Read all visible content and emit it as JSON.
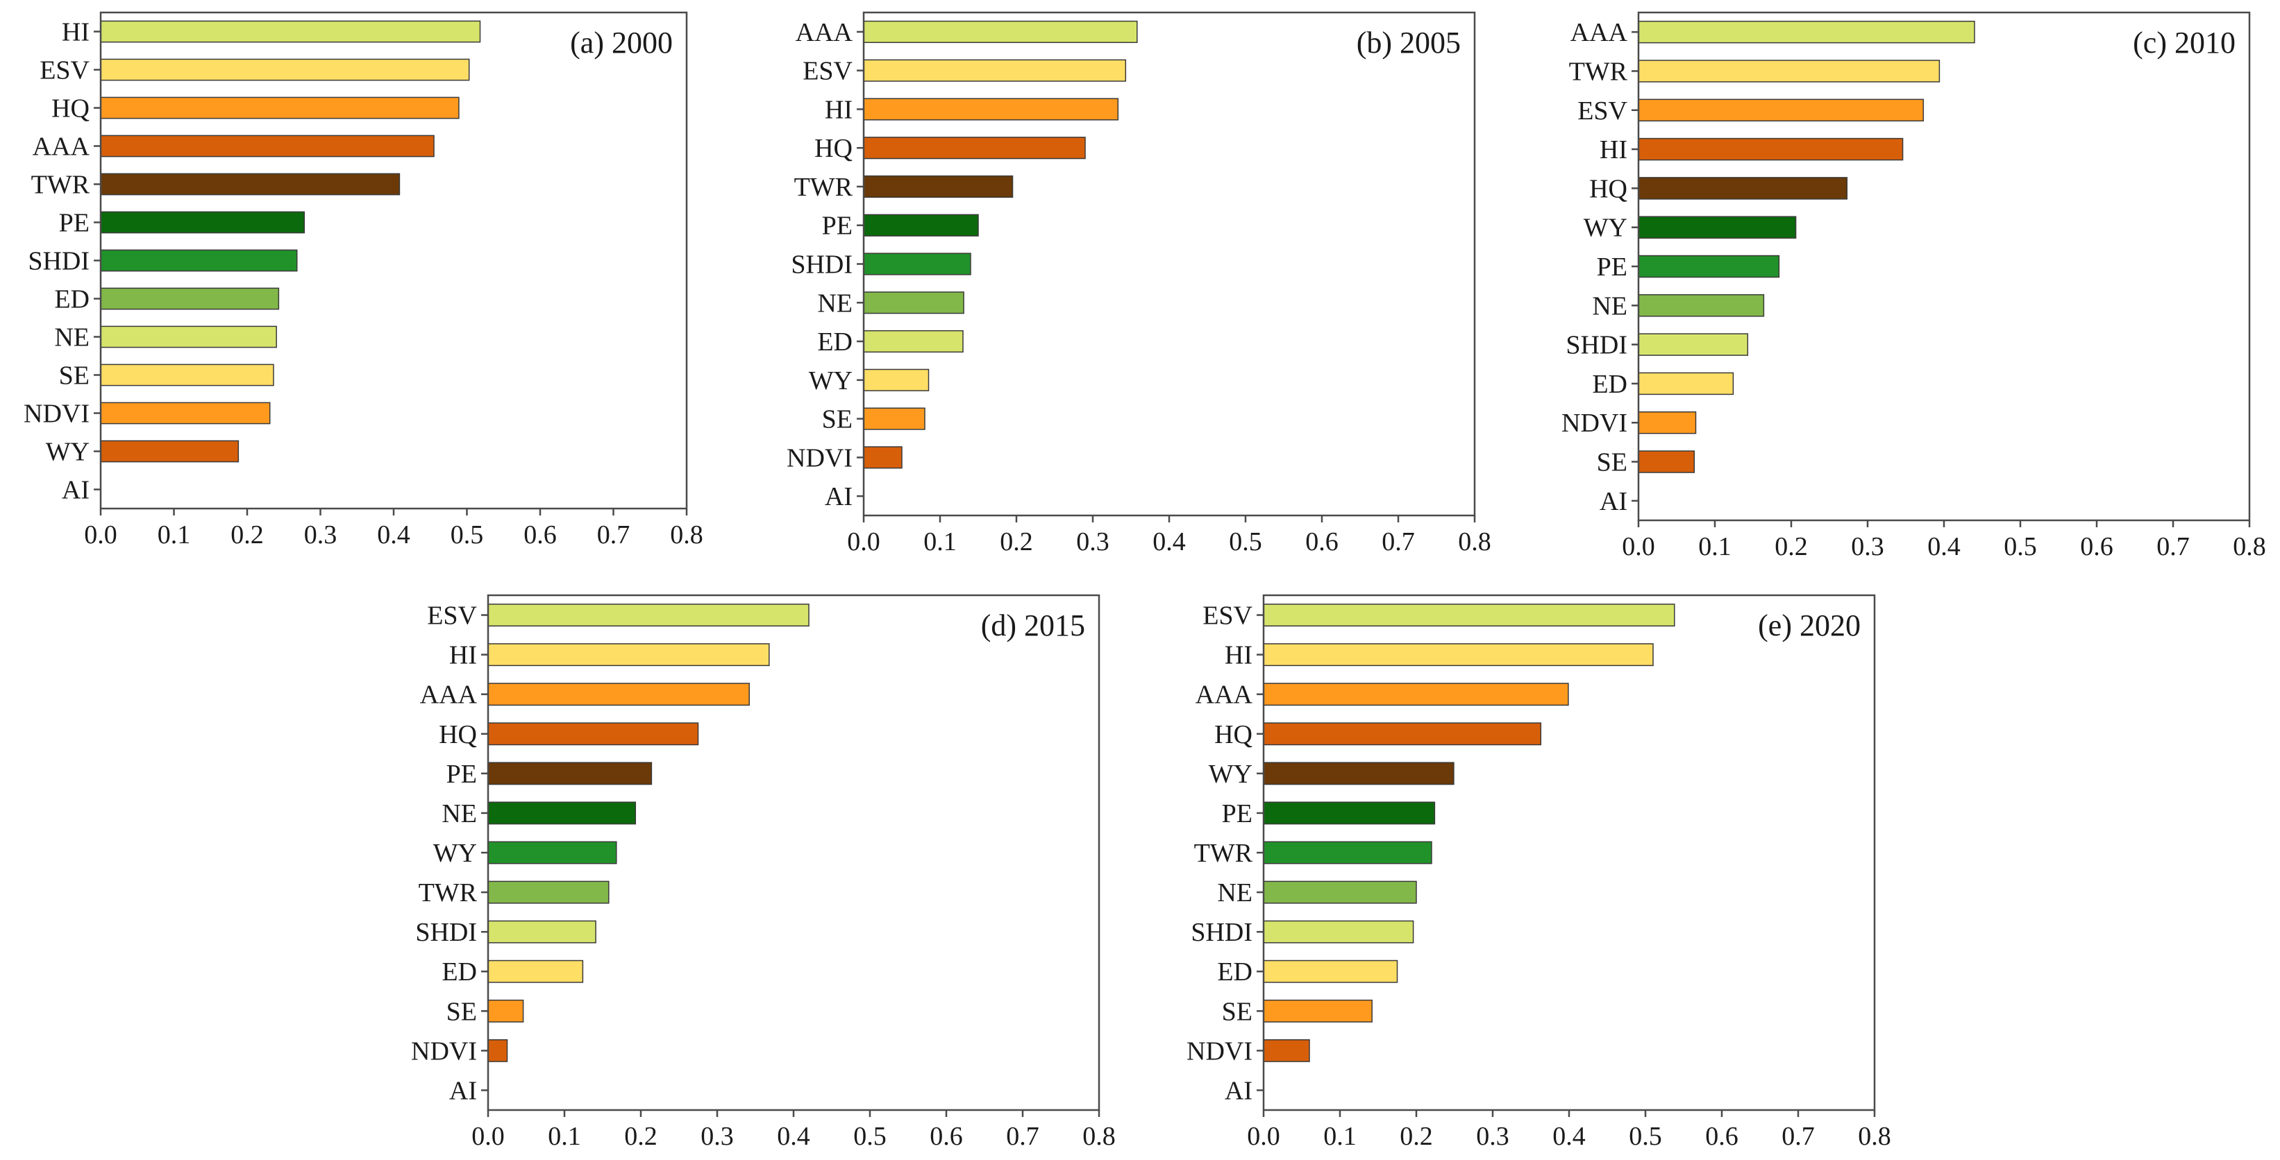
{
  "palette": [
    "#d7e46c",
    "#ffde66",
    "#ff9a1e",
    "#d85f0a",
    "#6b3a08",
    "#0b6a0b",
    "#21922a",
    "#82b849",
    "#d7e46c",
    "#ffde66",
    "#ff9a1e",
    "#d85f0a",
    "#d85f0a"
  ],
  "chart_data": [
    {
      "id": "a",
      "type": "bar",
      "orientation": "horizontal",
      "title": "(a) 2000",
      "categories": [
        "HI",
        "ESV",
        "HQ",
        "AAA",
        "TWR",
        "PE",
        "SHDI",
        "ED",
        "NE",
        "SE",
        "NDVI",
        "WY",
        "AI"
      ],
      "values": [
        0.518,
        0.503,
        0.489,
        0.455,
        0.408,
        0.278,
        0.268,
        0.243,
        0.24,
        0.236,
        0.231,
        0.188,
        0.0
      ],
      "xlim": [
        0,
        0.8
      ],
      "xticks": [
        "0.0",
        "0.1",
        "0.2",
        "0.3",
        "0.4",
        "0.5",
        "0.6",
        "0.7",
        "0.8"
      ]
    },
    {
      "id": "b",
      "type": "bar",
      "orientation": "horizontal",
      "title": "(b) 2005",
      "categories": [
        "AAA",
        "ESV",
        "HI",
        "HQ",
        "TWR",
        "PE",
        "SHDI",
        "NE",
        "ED",
        "WY",
        "SE",
        "NDVI",
        "AI"
      ],
      "values": [
        0.358,
        0.343,
        0.333,
        0.29,
        0.195,
        0.15,
        0.14,
        0.131,
        0.13,
        0.085,
        0.08,
        0.05,
        0.0
      ],
      "xlim": [
        0,
        0.8
      ],
      "xticks": [
        "0.0",
        "0.1",
        "0.2",
        "0.3",
        "0.4",
        "0.5",
        "0.6",
        "0.7",
        "0.8"
      ]
    },
    {
      "id": "c",
      "type": "bar",
      "orientation": "horizontal",
      "title": "(c) 2010",
      "categories": [
        "AAA",
        "TWR",
        "ESV",
        "HI",
        "HQ",
        "WY",
        "PE",
        "NE",
        "SHDI",
        "ED",
        "NDVI",
        "SE",
        "AI"
      ],
      "values": [
        0.44,
        0.394,
        0.373,
        0.346,
        0.273,
        0.206,
        0.184,
        0.164,
        0.143,
        0.124,
        0.075,
        0.073,
        0.0
      ],
      "xlim": [
        0,
        0.8
      ],
      "xticks": [
        "0.0",
        "0.1",
        "0.2",
        "0.3",
        "0.4",
        "0.5",
        "0.6",
        "0.7",
        "0.8"
      ]
    },
    {
      "id": "d",
      "type": "bar",
      "orientation": "horizontal",
      "title": "(d) 2015",
      "categories": [
        "ESV",
        "HI",
        "AAA",
        "HQ",
        "PE",
        "NE",
        "WY",
        "TWR",
        "SHDI",
        "ED",
        "SE",
        "NDVI",
        "AI"
      ],
      "values": [
        0.42,
        0.368,
        0.342,
        0.275,
        0.214,
        0.193,
        0.168,
        0.158,
        0.141,
        0.124,
        0.046,
        0.025,
        0.0
      ],
      "xlim": [
        0,
        0.8
      ],
      "xticks": [
        "0.0",
        "0.1",
        "0.2",
        "0.3",
        "0.4",
        "0.5",
        "0.6",
        "0.7",
        "0.8"
      ]
    },
    {
      "id": "e",
      "type": "bar",
      "orientation": "horizontal",
      "title": "(e) 2020",
      "categories": [
        "ESV",
        "HI",
        "AAA",
        "HQ",
        "WY",
        "PE",
        "TWR",
        "NE",
        "SHDI",
        "ED",
        "SE",
        "NDVI",
        "AI"
      ],
      "values": [
        0.538,
        0.51,
        0.399,
        0.363,
        0.249,
        0.224,
        0.22,
        0.2,
        0.196,
        0.175,
        0.142,
        0.06,
        0.0
      ],
      "xlim": [
        0,
        0.8
      ],
      "xticks": [
        "0.0",
        "0.1",
        "0.2",
        "0.3",
        "0.4",
        "0.5",
        "0.6",
        "0.7",
        "0.8"
      ]
    }
  ]
}
